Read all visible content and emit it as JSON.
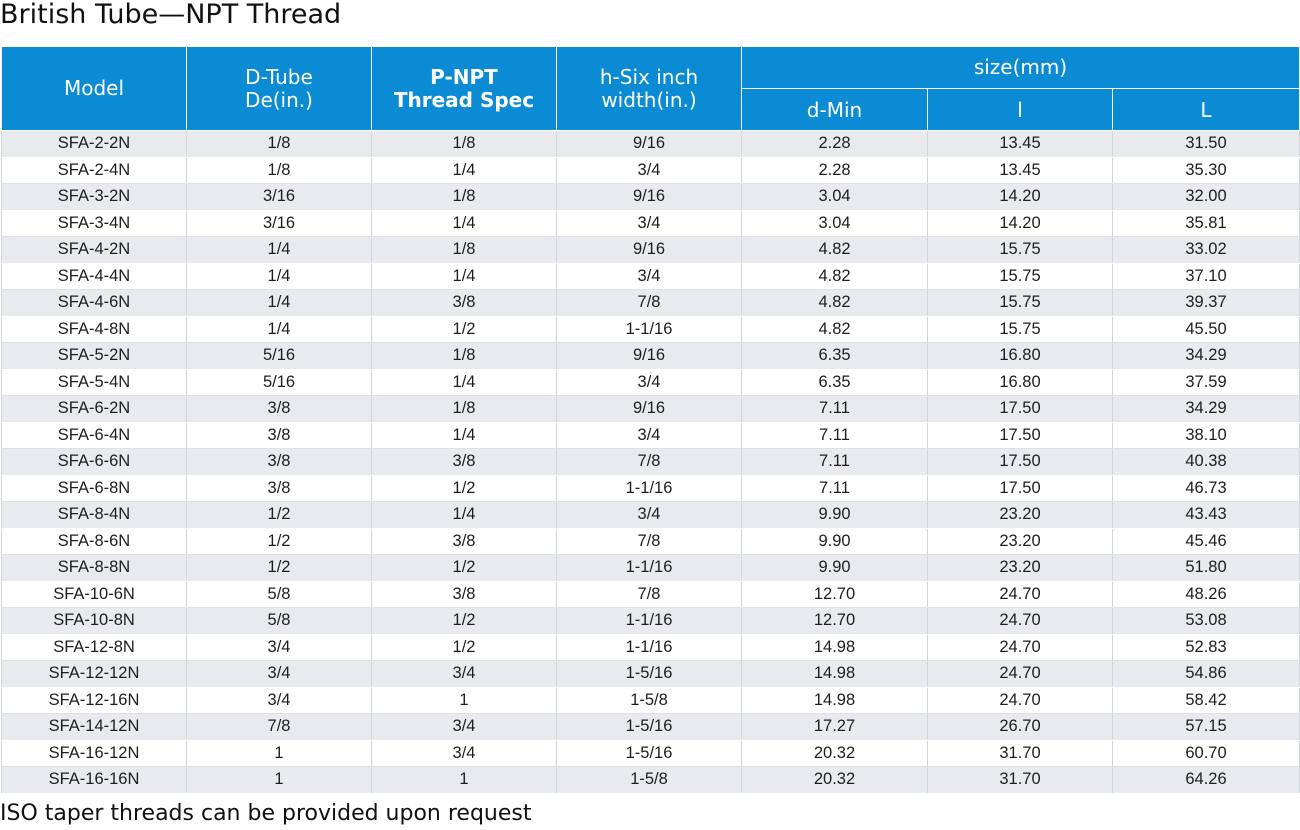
{
  "title": "British Tube—NPT Thread",
  "table": {
    "headers": {
      "model": "Model",
      "d_tube_line1": "D-Tube",
      "d_tube_line2": "De(in.)",
      "p_npt_line1": "P-NPT",
      "p_npt_line2": "Thread Spec",
      "h_six_line1": "h-Six inch",
      "h_six_line2": "width(in.)",
      "size_group": "size(mm)",
      "d_min": "d-Min",
      "l_small": "l",
      "l_big": "L"
    },
    "rows": [
      [
        "SFA-2-2N",
        "1/8",
        "1/8",
        "9/16",
        "2.28",
        "13.45",
        "31.50"
      ],
      [
        "SFA-2-4N",
        "1/8",
        "1/4",
        "3/4",
        "2.28",
        "13.45",
        "35.30"
      ],
      [
        "SFA-3-2N",
        "3/16",
        "1/8",
        "9/16",
        "3.04",
        "14.20",
        "32.00"
      ],
      [
        "SFA-3-4N",
        "3/16",
        "1/4",
        "3/4",
        "3.04",
        "14.20",
        "35.81"
      ],
      [
        "SFA-4-2N",
        "1/4",
        "1/8",
        "9/16",
        "4.82",
        "15.75",
        "33.02"
      ],
      [
        "SFA-4-4N",
        "1/4",
        "1/4",
        "3/4",
        "4.82",
        "15.75",
        "37.10"
      ],
      [
        "SFA-4-6N",
        "1/4",
        "3/8",
        "7/8",
        "4.82",
        "15.75",
        "39.37"
      ],
      [
        "SFA-4-8N",
        "1/4",
        "1/2",
        "1-1/16",
        "4.82",
        "15.75",
        "45.50"
      ],
      [
        "SFA-5-2N",
        "5/16",
        "1/8",
        "9/16",
        "6.35",
        "16.80",
        "34.29"
      ],
      [
        "SFA-5-4N",
        "5/16",
        "1/4",
        "3/4",
        "6.35",
        "16.80",
        "37.59"
      ],
      [
        "SFA-6-2N",
        "3/8",
        "1/8",
        "9/16",
        "7.11",
        "17.50",
        "34.29"
      ],
      [
        "SFA-6-4N",
        "3/8",
        "1/4",
        "3/4",
        "7.11",
        "17.50",
        "38.10"
      ],
      [
        "SFA-6-6N",
        "3/8",
        "3/8",
        "7/8",
        "7.11",
        "17.50",
        "40.38"
      ],
      [
        "SFA-6-8N",
        "3/8",
        "1/2",
        "1-1/16",
        "7.11",
        "17.50",
        "46.73"
      ],
      [
        "SFA-8-4N",
        "1/2",
        "1/4",
        "3/4",
        "9.90",
        "23.20",
        "43.43"
      ],
      [
        "SFA-8-6N",
        "1/2",
        "3/8",
        "7/8",
        "9.90",
        "23.20",
        "45.46"
      ],
      [
        "SFA-8-8N",
        "1/2",
        "1/2",
        "1-1/16",
        "9.90",
        "23.20",
        "51.80"
      ],
      [
        "SFA-10-6N",
        "5/8",
        "3/8",
        "7/8",
        "12.70",
        "24.70",
        "48.26"
      ],
      [
        "SFA-10-8N",
        "5/8",
        "1/2",
        "1-1/16",
        "12.70",
        "24.70",
        "53.08"
      ],
      [
        "SFA-12-8N",
        "3/4",
        "1/2",
        "1-1/16",
        "14.98",
        "24.70",
        "52.83"
      ],
      [
        "SFA-12-12N",
        "3/4",
        "3/4",
        "1-5/16",
        "14.98",
        "24.70",
        "54.86"
      ],
      [
        "SFA-12-16N",
        "3/4",
        "1",
        "1-5/8",
        "14.98",
        "24.70",
        "58.42"
      ],
      [
        "SFA-14-12N",
        "7/8",
        "3/4",
        "1-5/16",
        "17.27",
        "26.70",
        "57.15"
      ],
      [
        "SFA-16-12N",
        "1",
        "3/4",
        "1-5/16",
        "20.32",
        "31.70",
        "60.70"
      ],
      [
        "SFA-16-16N",
        "1",
        "1",
        "1-5/8",
        "20.32",
        "31.70",
        "64.26"
      ]
    ]
  },
  "note": "ISO taper threads can be provided upon request",
  "colors": {
    "header_bg": "#0b8bd3",
    "header_text": "#ffffff",
    "stripe_bg": "#e8eaed"
  }
}
